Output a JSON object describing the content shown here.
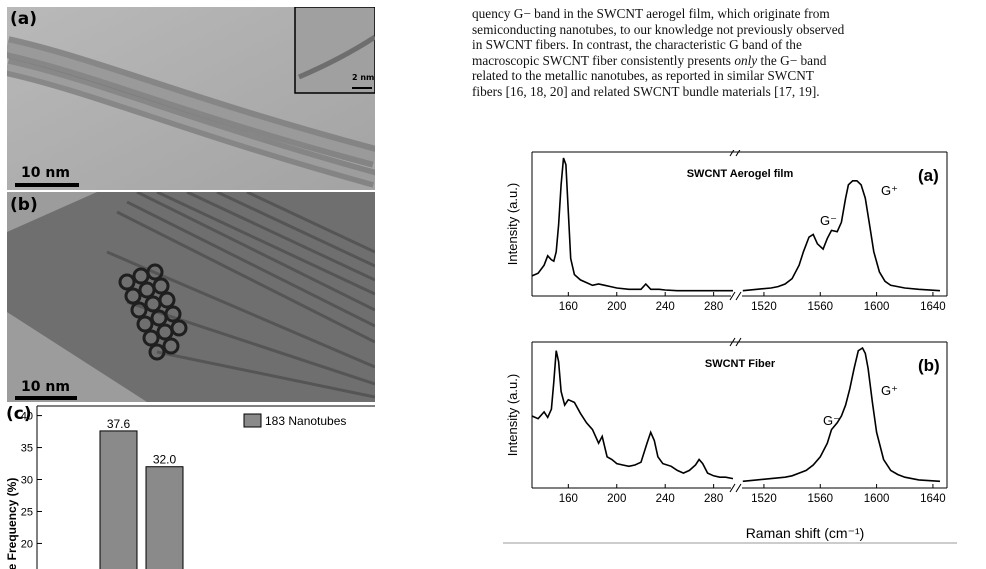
{
  "figure_left": {
    "panel_a": {
      "label": "(a)",
      "scale": "10 nm",
      "inset_scale": "2 nm"
    },
    "panel_b": {
      "label": "(b)",
      "scale": "10 nm"
    },
    "panel_c": {
      "label": "(c)",
      "legend": "183 Nanotubes",
      "ylabel": "e Frequency (%)",
      "yticks": [
        "20",
        "25",
        "30",
        "35",
        "40"
      ]
    }
  },
  "paragraph": [
    "quency G− band in the SWCNT aerogel film, which originate from",
    "semiconducting nanotubes, to our knowledge not previously observed",
    "in SWCNT fibers.  In contrast, the characteristic G band of the",
    "macroscopic SWCNT fiber consistently presents ",
    "only",
    " the G− band",
    "related to the metallic nanotubes, as reported in similar SWCNT",
    "fibers [16, 18, 20] and related SWCNT bundle materials [17, 19]."
  ],
  "chart_data": [
    {
      "type": "bar",
      "categories": [
        "",
        ""
      ],
      "values": [
        37.6,
        32.0
      ],
      "data_labels": [
        "37.6",
        "32.0"
      ],
      "ylim": [
        16,
        41.5
      ],
      "ylabel": "e Frequency (%)",
      "legend": "183 Nanotubes",
      "color": "#8a8a8a"
    },
    {
      "type": "line",
      "panel": "(a)",
      "title": "SWCNT Aerogel film",
      "ylabel": "Intensity (a.u.)",
      "xticks_left": [
        "160",
        "200",
        "240",
        "280"
      ],
      "xticks_right": [
        "1520",
        "1560",
        "1600",
        "1640"
      ],
      "annotations": [
        "G⁻",
        "G⁺"
      ],
      "series_left": {
        "x": [
          130,
          135,
          140,
          143,
          146,
          148,
          150,
          152,
          154,
          156,
          158,
          160,
          162,
          165,
          170,
          175,
          180,
          185,
          190,
          195,
          200,
          210,
          220,
          224,
          228,
          235,
          240,
          250,
          260,
          270,
          280,
          290,
          296
        ],
        "y": [
          0.12,
          0.14,
          0.2,
          0.27,
          0.24,
          0.23,
          0.3,
          0.5,
          0.8,
          1.0,
          0.95,
          0.6,
          0.25,
          0.13,
          0.09,
          0.07,
          0.05,
          0.06,
          0.05,
          0.04,
          0.03,
          0.02,
          0.02,
          0.06,
          0.02,
          0.02,
          0.015,
          0.01,
          0.01,
          0.01,
          0.01,
          0.01,
          0.01
        ]
      },
      "series_right": {
        "x": [
          1505,
          1515,
          1525,
          1530,
          1535,
          1540,
          1545,
          1548,
          1552,
          1555,
          1558,
          1562,
          1565,
          1568,
          1572,
          1575,
          1578,
          1580,
          1583,
          1586,
          1589,
          1592,
          1595,
          1598,
          1602,
          1606,
          1610,
          1620,
          1630,
          1645
        ],
        "y": [
          0.01,
          0.02,
          0.03,
          0.04,
          0.06,
          0.1,
          0.2,
          0.3,
          0.41,
          0.43,
          0.36,
          0.32,
          0.4,
          0.46,
          0.45,
          0.52,
          0.7,
          0.8,
          0.83,
          0.83,
          0.8,
          0.7,
          0.5,
          0.3,
          0.15,
          0.08,
          0.05,
          0.03,
          0.02,
          0.01
        ]
      }
    },
    {
      "type": "line",
      "panel": "(b)",
      "title": "SWCNT Fiber",
      "ylabel": "Intensity (a.u.)",
      "xlabel": "Raman shift (cm⁻¹)",
      "xticks_left": [
        "160",
        "200",
        "240",
        "280"
      ],
      "xticks_right": [
        "1520",
        "1560",
        "1600",
        "1640"
      ],
      "annotations": [
        "G⁻",
        "G⁺"
      ],
      "series_left": {
        "x": [
          130,
          135,
          140,
          143,
          146,
          148,
          150,
          152,
          154,
          157,
          160,
          165,
          170,
          175,
          180,
          185,
          188,
          192,
          196,
          200,
          205,
          210,
          215,
          220,
          225,
          228,
          231,
          234,
          238,
          245,
          250,
          255,
          260,
          265,
          268,
          271,
          275,
          280,
          285,
          290,
          296
        ],
        "y": [
          0.5,
          0.48,
          0.53,
          0.49,
          0.55,
          0.75,
          0.98,
          0.9,
          0.68,
          0.58,
          0.62,
          0.6,
          0.52,
          0.45,
          0.4,
          0.3,
          0.35,
          0.2,
          0.18,
          0.15,
          0.14,
          0.13,
          0.14,
          0.16,
          0.3,
          0.38,
          0.32,
          0.2,
          0.15,
          0.13,
          0.1,
          0.08,
          0.1,
          0.14,
          0.18,
          0.15,
          0.08,
          0.06,
          0.05,
          0.05,
          0.04
        ]
      },
      "series_right": {
        "x": [
          1505,
          1515,
          1525,
          1535,
          1540,
          1545,
          1550,
          1555,
          1560,
          1565,
          1568,
          1572,
          1575,
          1578,
          1581,
          1584,
          1587,
          1590,
          1592,
          1594,
          1597,
          1600,
          1605,
          1610,
          1615,
          1620,
          1630,
          1645
        ],
        "y": [
          0.02,
          0.03,
          0.04,
          0.05,
          0.06,
          0.08,
          0.1,
          0.14,
          0.2,
          0.3,
          0.4,
          0.45,
          0.5,
          0.58,
          0.7,
          0.85,
          0.98,
          1.0,
          0.96,
          0.85,
          0.6,
          0.38,
          0.18,
          0.1,
          0.07,
          0.05,
          0.03,
          0.02
        ]
      }
    }
  ]
}
